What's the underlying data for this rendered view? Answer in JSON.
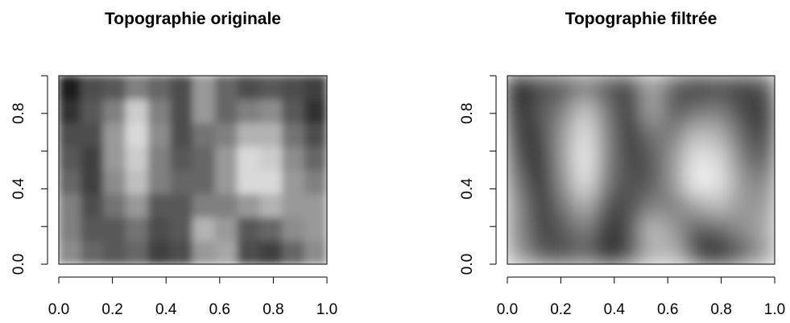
{
  "chart_data": [
    {
      "type": "heatmap",
      "title": "Topographie originale",
      "colormap": "gray",
      "smooth": false,
      "xlim": [
        0,
        1
      ],
      "ylim": [
        0,
        1
      ],
      "xticks": [
        {
          "value": 0,
          "label": "0.0"
        },
        0.2,
        0.4,
        0.6,
        0.8,
        {
          "value": 1,
          "label": "1.0"
        }
      ],
      "yticks": [
        {
          "value": 0,
          "label": "0.0"
        },
        {
          "value": 0.2,
          "label": null
        },
        0.4,
        {
          "value": 0.6,
          "label": null
        },
        0.8,
        {
          "value": 1,
          "label": null
        }
      ],
      "z": [
        [
          0.55,
          0.4,
          0.35,
          0.4,
          0.25,
          0.3,
          0.6,
          0.65,
          0.3,
          0.25,
          0.4,
          0.55
        ],
        [
          0.5,
          0.35,
          0.35,
          0.45,
          0.3,
          0.35,
          0.7,
          0.6,
          0.35,
          0.4,
          0.55,
          0.6
        ],
        [
          0.5,
          0.3,
          0.45,
          0.6,
          0.35,
          0.35,
          0.5,
          0.5,
          0.6,
          0.7,
          0.6,
          0.6
        ],
        [
          0.4,
          0.25,
          0.55,
          0.75,
          0.5,
          0.4,
          0.4,
          0.6,
          0.85,
          0.85,
          0.6,
          0.5
        ],
        [
          0.35,
          0.25,
          0.6,
          0.8,
          0.5,
          0.35,
          0.4,
          0.6,
          0.85,
          0.8,
          0.55,
          0.4
        ],
        [
          0.3,
          0.3,
          0.6,
          0.85,
          0.55,
          0.3,
          0.45,
          0.5,
          0.7,
          0.7,
          0.45,
          0.3
        ],
        [
          0.2,
          0.35,
          0.5,
          0.8,
          0.5,
          0.3,
          0.6,
          0.4,
          0.5,
          0.55,
          0.35,
          0.2
        ],
        [
          0.1,
          0.3,
          0.35,
          0.5,
          0.4,
          0.3,
          0.6,
          0.4,
          0.3,
          0.35,
          0.3,
          0.25
        ]
      ]
    },
    {
      "type": "heatmap",
      "title": "Topographie filtrée",
      "colormap": "gray",
      "smooth": true,
      "xlim": [
        0,
        1
      ],
      "ylim": [
        0,
        1
      ],
      "xticks": [
        {
          "value": 0,
          "label": "0.0"
        },
        0.2,
        0.4,
        0.6,
        0.8,
        {
          "value": 1,
          "label": "1.0"
        }
      ],
      "yticks": [
        {
          "value": 0,
          "label": "0.0"
        },
        {
          "value": 0.2,
          "label": null
        },
        0.4,
        {
          "value": 0.6,
          "label": null
        },
        0.8,
        {
          "value": 1,
          "label": null
        }
      ],
      "z": [
        [
          0.6,
          0.35,
          0.3,
          0.4,
          0.15,
          0.3,
          0.7,
          0.7,
          0.25,
          0.15,
          0.35,
          0.6
        ],
        [
          0.55,
          0.25,
          0.35,
          0.5,
          0.2,
          0.3,
          0.75,
          0.6,
          0.35,
          0.4,
          0.55,
          0.65
        ],
        [
          0.55,
          0.2,
          0.45,
          0.7,
          0.3,
          0.3,
          0.5,
          0.5,
          0.65,
          0.75,
          0.6,
          0.6
        ],
        [
          0.45,
          0.15,
          0.55,
          0.9,
          0.45,
          0.3,
          0.35,
          0.6,
          0.95,
          0.9,
          0.6,
          0.5
        ],
        [
          0.35,
          0.15,
          0.6,
          0.95,
          0.5,
          0.25,
          0.35,
          0.6,
          0.9,
          0.85,
          0.5,
          0.35
        ],
        [
          0.25,
          0.25,
          0.6,
          0.9,
          0.5,
          0.2,
          0.45,
          0.5,
          0.75,
          0.7,
          0.4,
          0.25
        ],
        [
          0.15,
          0.35,
          0.5,
          0.8,
          0.45,
          0.2,
          0.65,
          0.35,
          0.45,
          0.5,
          0.3,
          0.2
        ],
        [
          0.05,
          0.3,
          0.35,
          0.5,
          0.35,
          0.25,
          0.65,
          0.35,
          0.25,
          0.3,
          0.25,
          0.3
        ]
      ]
    }
  ]
}
